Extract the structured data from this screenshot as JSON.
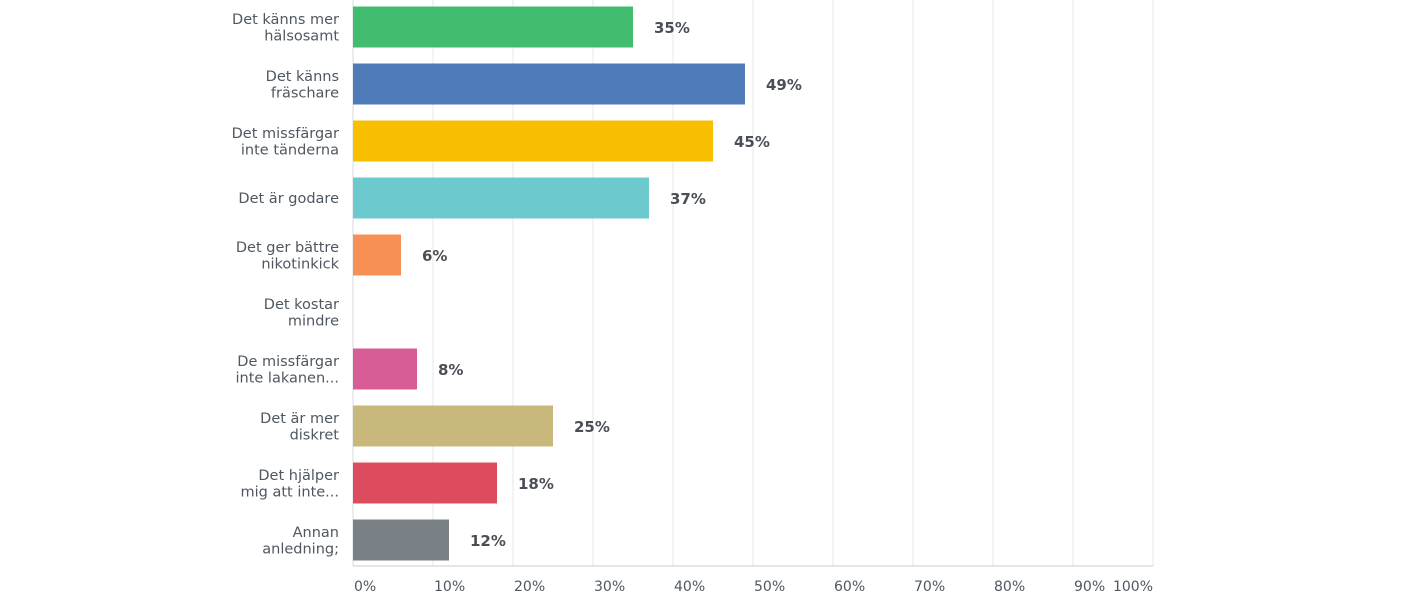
{
  "chart_data": {
    "type": "bar",
    "orientation": "horizontal",
    "categories": [
      [
        "Det känns mer",
        "hälsosamt"
      ],
      [
        "Det känns",
        "fräschare"
      ],
      [
        "Det missfärgar",
        "inte tänderna"
      ],
      [
        "Det är godare"
      ],
      [
        "Det ger bättre",
        "nikotinkick"
      ],
      [
        "Det kostar",
        "mindre"
      ],
      [
        "De missfärgar",
        "inte lakanen..."
      ],
      [
        "Det är mer",
        "diskret"
      ],
      [
        "Det hjälper",
        "mig att inte..."
      ],
      [
        "Annan",
        "anledning;"
      ]
    ],
    "values": [
      35,
      49,
      45,
      37,
      6,
      0,
      8,
      25,
      18,
      12
    ],
    "value_labels": [
      "35%",
      "49%",
      "45%",
      "37%",
      "6%",
      "",
      "8%",
      "25%",
      "18%",
      "12%"
    ],
    "colors": [
      "#42bd6f",
      "#4f7bb9",
      "#f8bf00",
      "#6ccacf",
      "#f79055",
      "#a5a5a5",
      "#d85c95",
      "#c8b87c",
      "#dc4c5e",
      "#7a8186"
    ],
    "xlim": [
      0,
      100
    ],
    "xticks": [
      "0%",
      "10%",
      "20%",
      "30%",
      "40%",
      "50%",
      "60%",
      "70%",
      "80%",
      "90%",
      "100%"
    ],
    "grid": true,
    "title": "",
    "xlabel": "",
    "ylabel": ""
  }
}
